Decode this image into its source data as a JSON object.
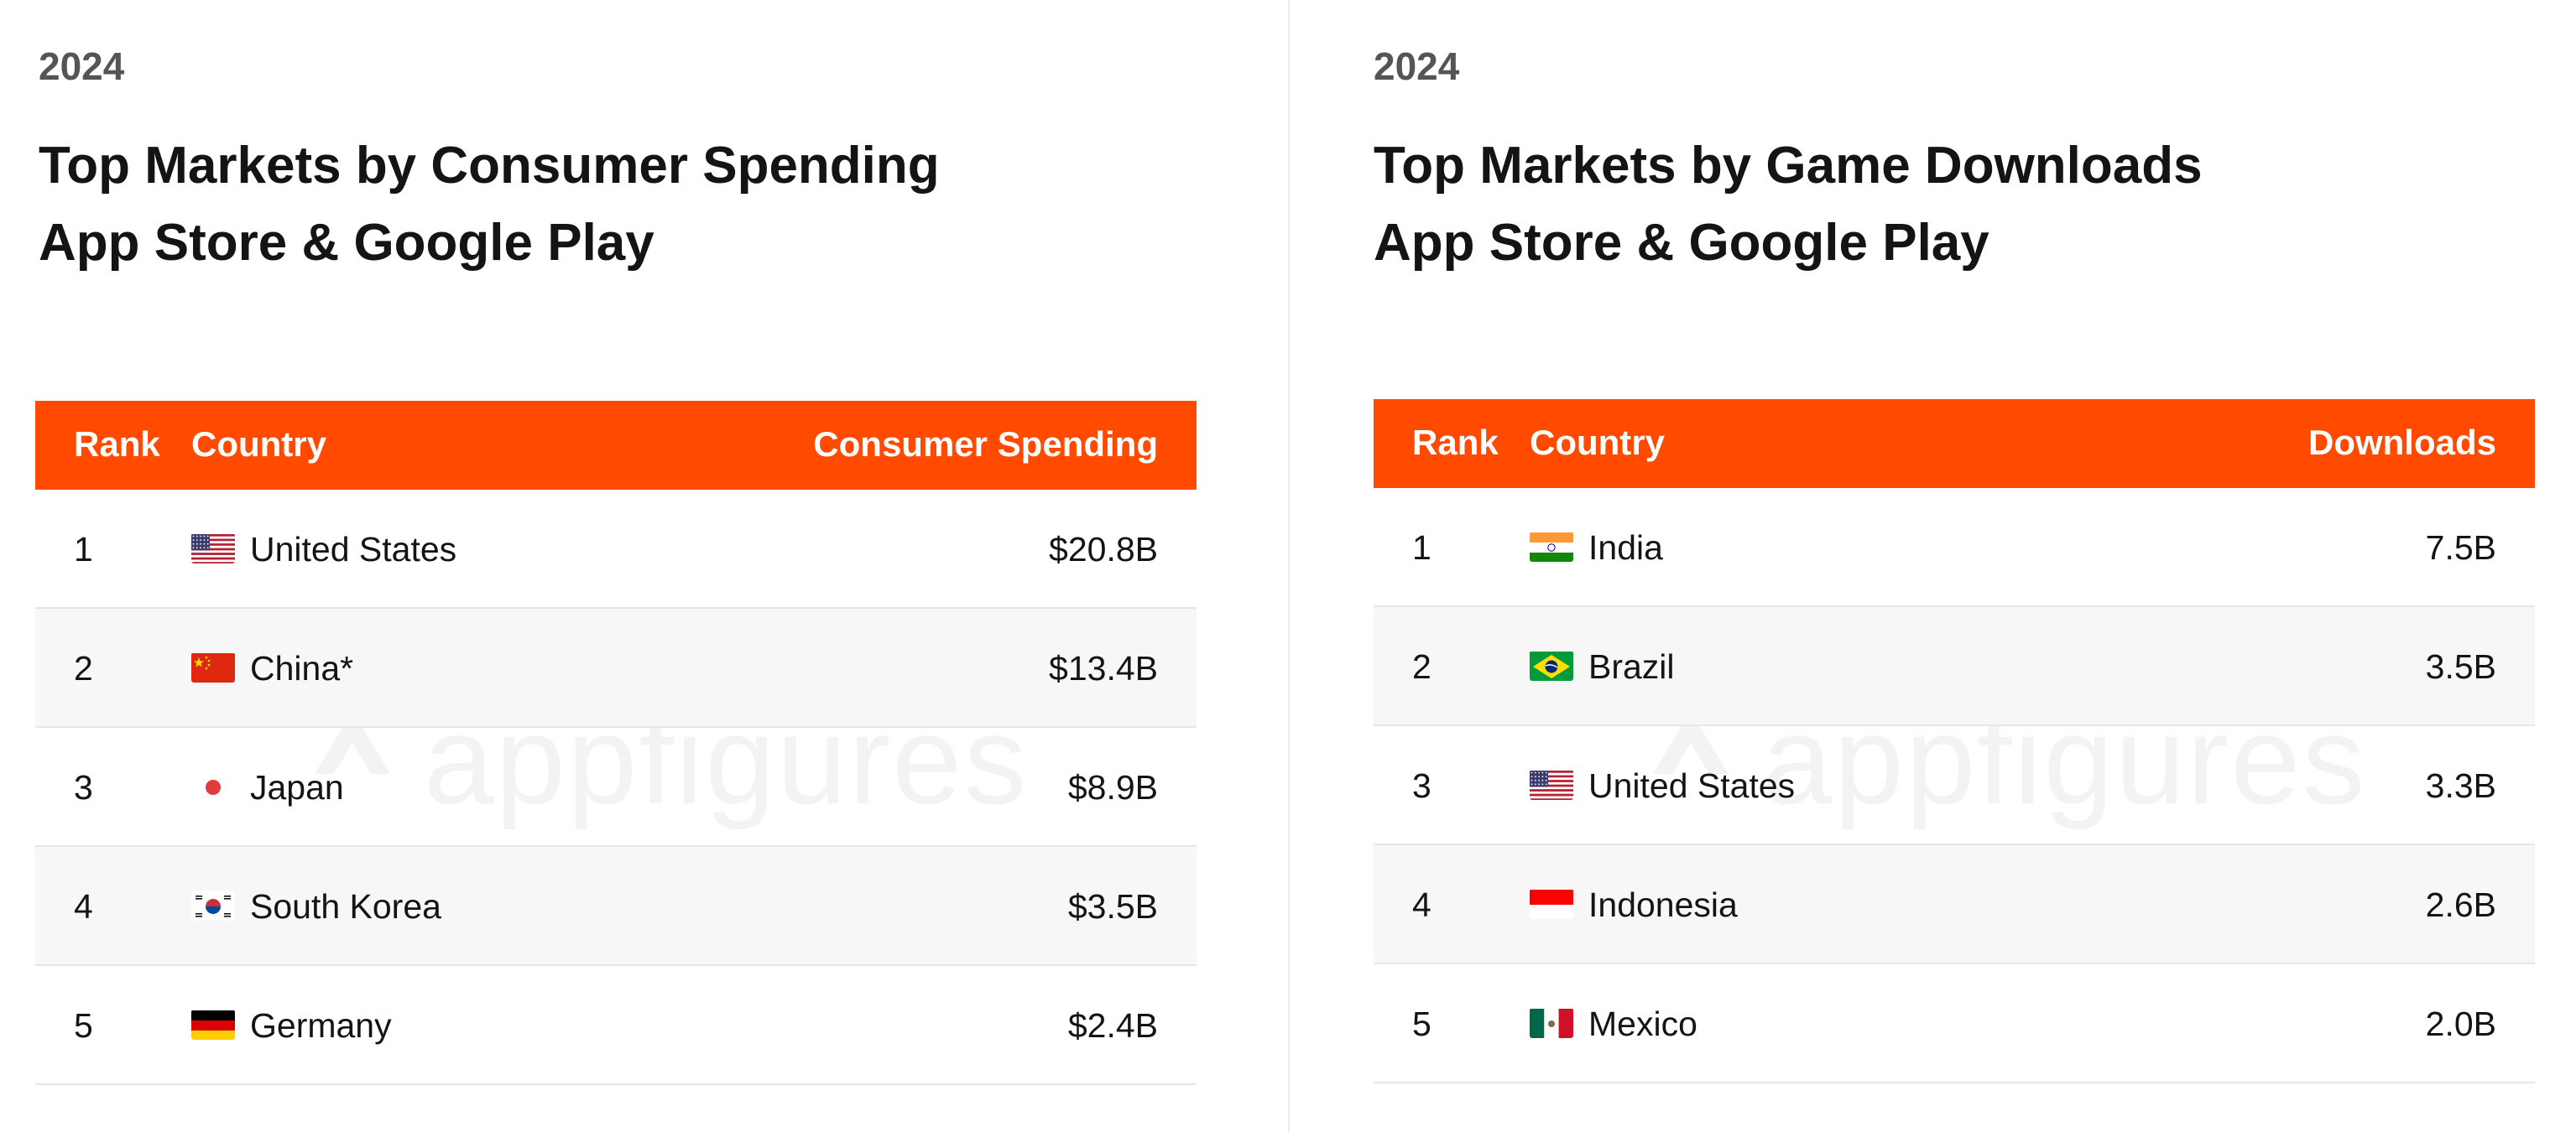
{
  "watermark_text": "appfigures",
  "colors": {
    "header": "#ff4a00",
    "header_text": "#ffffff",
    "row_alt": "#f7f7f7"
  },
  "left": {
    "year": "2024",
    "title_line1": "Top Markets by Consumer Spending",
    "title_line2": "App Store & Google Play",
    "headers": {
      "rank": "Rank",
      "country": "Country",
      "value": "Consumer Spending"
    }
  },
  "right": {
    "year": "2024",
    "title_line1": "Top Markets by Game Downloads",
    "title_line2": "App Store & Google Play",
    "headers": {
      "rank": "Rank",
      "country": "Country",
      "value": "Downloads"
    }
  },
  "chart_data": [
    {
      "type": "table",
      "title": "Top Markets by Consumer Spending",
      "subtitle": "App Store & Google Play",
      "columns": [
        "Rank",
        "Country",
        "Consumer Spending"
      ],
      "rows": [
        {
          "rank": "1",
          "country": "United States",
          "value": "$20.8B",
          "flag": "us"
        },
        {
          "rank": "2",
          "country": "China*",
          "value": "$13.4B",
          "flag": "cn"
        },
        {
          "rank": "3",
          "country": "Japan",
          "value": "$8.9B",
          "flag": "jp"
        },
        {
          "rank": "4",
          "country": "South Korea",
          "value": "$3.5B",
          "flag": "kr"
        },
        {
          "rank": "5",
          "country": "Germany",
          "value": "$2.4B",
          "flag": "de"
        }
      ]
    },
    {
      "type": "table",
      "title": "Top Markets by Game Downloads",
      "subtitle": "App Store & Google Play",
      "columns": [
        "Rank",
        "Country",
        "Downloads"
      ],
      "rows": [
        {
          "rank": "1",
          "country": "India",
          "value": "7.5B",
          "flag": "in"
        },
        {
          "rank": "2",
          "country": "Brazil",
          "value": "3.5B",
          "flag": "br"
        },
        {
          "rank": "3",
          "country": "United States",
          "value": "3.3B",
          "flag": "us"
        },
        {
          "rank": "4",
          "country": "Indonesia",
          "value": "2.6B",
          "flag": "id"
        },
        {
          "rank": "5",
          "country": "Mexico",
          "value": "2.0B",
          "flag": "mx"
        }
      ]
    }
  ]
}
